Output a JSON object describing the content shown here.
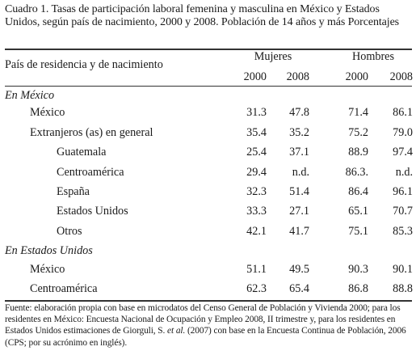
{
  "caption": "Cuadro 1. Tasas de participación laboral femenina y masculina en México y Estados Unidos, según país de nacimiento, 2000 y 2008. Población de 14 años y más Porcentajes",
  "table": {
    "row_header": "País de residencia y de nacimiento",
    "groups": [
      "Mujeres",
      "Hombres"
    ],
    "years": [
      "2000",
      "2008",
      "2000",
      "2008"
    ],
    "sections": [
      {
        "title": "En México",
        "rows": [
          {
            "label": "México",
            "values": [
              "31.3",
              "47.8",
              "71.4",
              "86.1"
            ]
          },
          {
            "label": "Extranjeros (as) en general",
            "values": [
              "35.4",
              "35.2",
              "75.2",
              "79.0"
            ]
          },
          {
            "label": "Guatemala",
            "values": [
              "25.4",
              "37.1",
              "88.9",
              "97.4"
            ]
          },
          {
            "label": "Centroamérica",
            "values": [
              "29.4",
              "n.d.",
              "86.3.",
              "n.d."
            ]
          },
          {
            "label": "España",
            "values": [
              "32.3",
              "51.4",
              "86.4",
              "96.1"
            ]
          },
          {
            "label": "Estados Unidos",
            "values": [
              "33.3",
              "27.1",
              "65.1",
              "70.7"
            ]
          },
          {
            "label": "Otros",
            "values": [
              "42.1",
              "41.7",
              "75.1",
              "85.3"
            ]
          }
        ]
      },
      {
        "title": "En Estados Unidos",
        "rows": [
          {
            "label": "México",
            "values": [
              "51.1",
              "49.5",
              "90.3",
              "90.1"
            ]
          },
          {
            "label": "Centroamérica",
            "values": [
              "62.3",
              "65.4",
              "86.8",
              "88.8"
            ]
          }
        ]
      }
    ]
  },
  "footnote": {
    "before_etal": "Fuente: elaboración propia con base en microdatos del Censo General de Población y Vivienda 2000; para los residentes en México: Encuesta Nacional de Ocupación y Empleo 2008, II trimestre y, para los residentes en Estados Unidos estimaciones de Giorguli, S. ",
    "etal": "et al.",
    "after_etal": " (2007) con base en la Encuesta Continua de Población, 2006 (CPS; por su acrónimo en inglés)."
  }
}
